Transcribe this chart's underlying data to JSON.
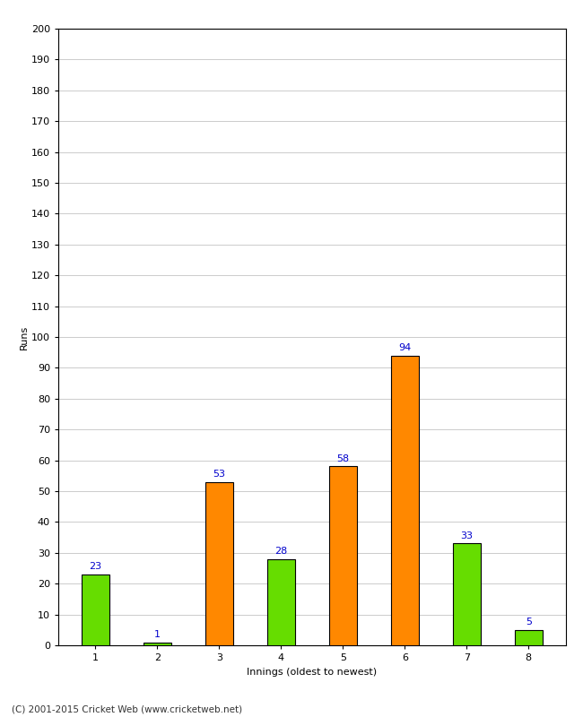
{
  "xlabel": "Innings (oldest to newest)",
  "ylabel": "Runs",
  "categories": [
    "1",
    "2",
    "3",
    "4",
    "5",
    "6",
    "7",
    "8"
  ],
  "values": [
    23,
    1,
    53,
    28,
    58,
    94,
    33,
    5
  ],
  "bar_colors": [
    "#66dd00",
    "#66dd00",
    "#ff8800",
    "#66dd00",
    "#ff8800",
    "#ff8800",
    "#66dd00",
    "#66dd00"
  ],
  "ylim": [
    0,
    200
  ],
  "yticks": [
    0,
    10,
    20,
    30,
    40,
    50,
    60,
    70,
    80,
    90,
    100,
    110,
    120,
    130,
    140,
    150,
    160,
    170,
    180,
    190,
    200
  ],
  "label_color": "#0000cc",
  "label_fontsize": 8,
  "axis_label_fontsize": 8,
  "tick_fontsize": 8,
  "grid_color": "#cccccc",
  "background_color": "#ffffff",
  "border_color": "#000000",
  "footer": "(C) 2001-2015 Cricket Web (www.cricketweb.net)",
  "bar_width": 0.45
}
